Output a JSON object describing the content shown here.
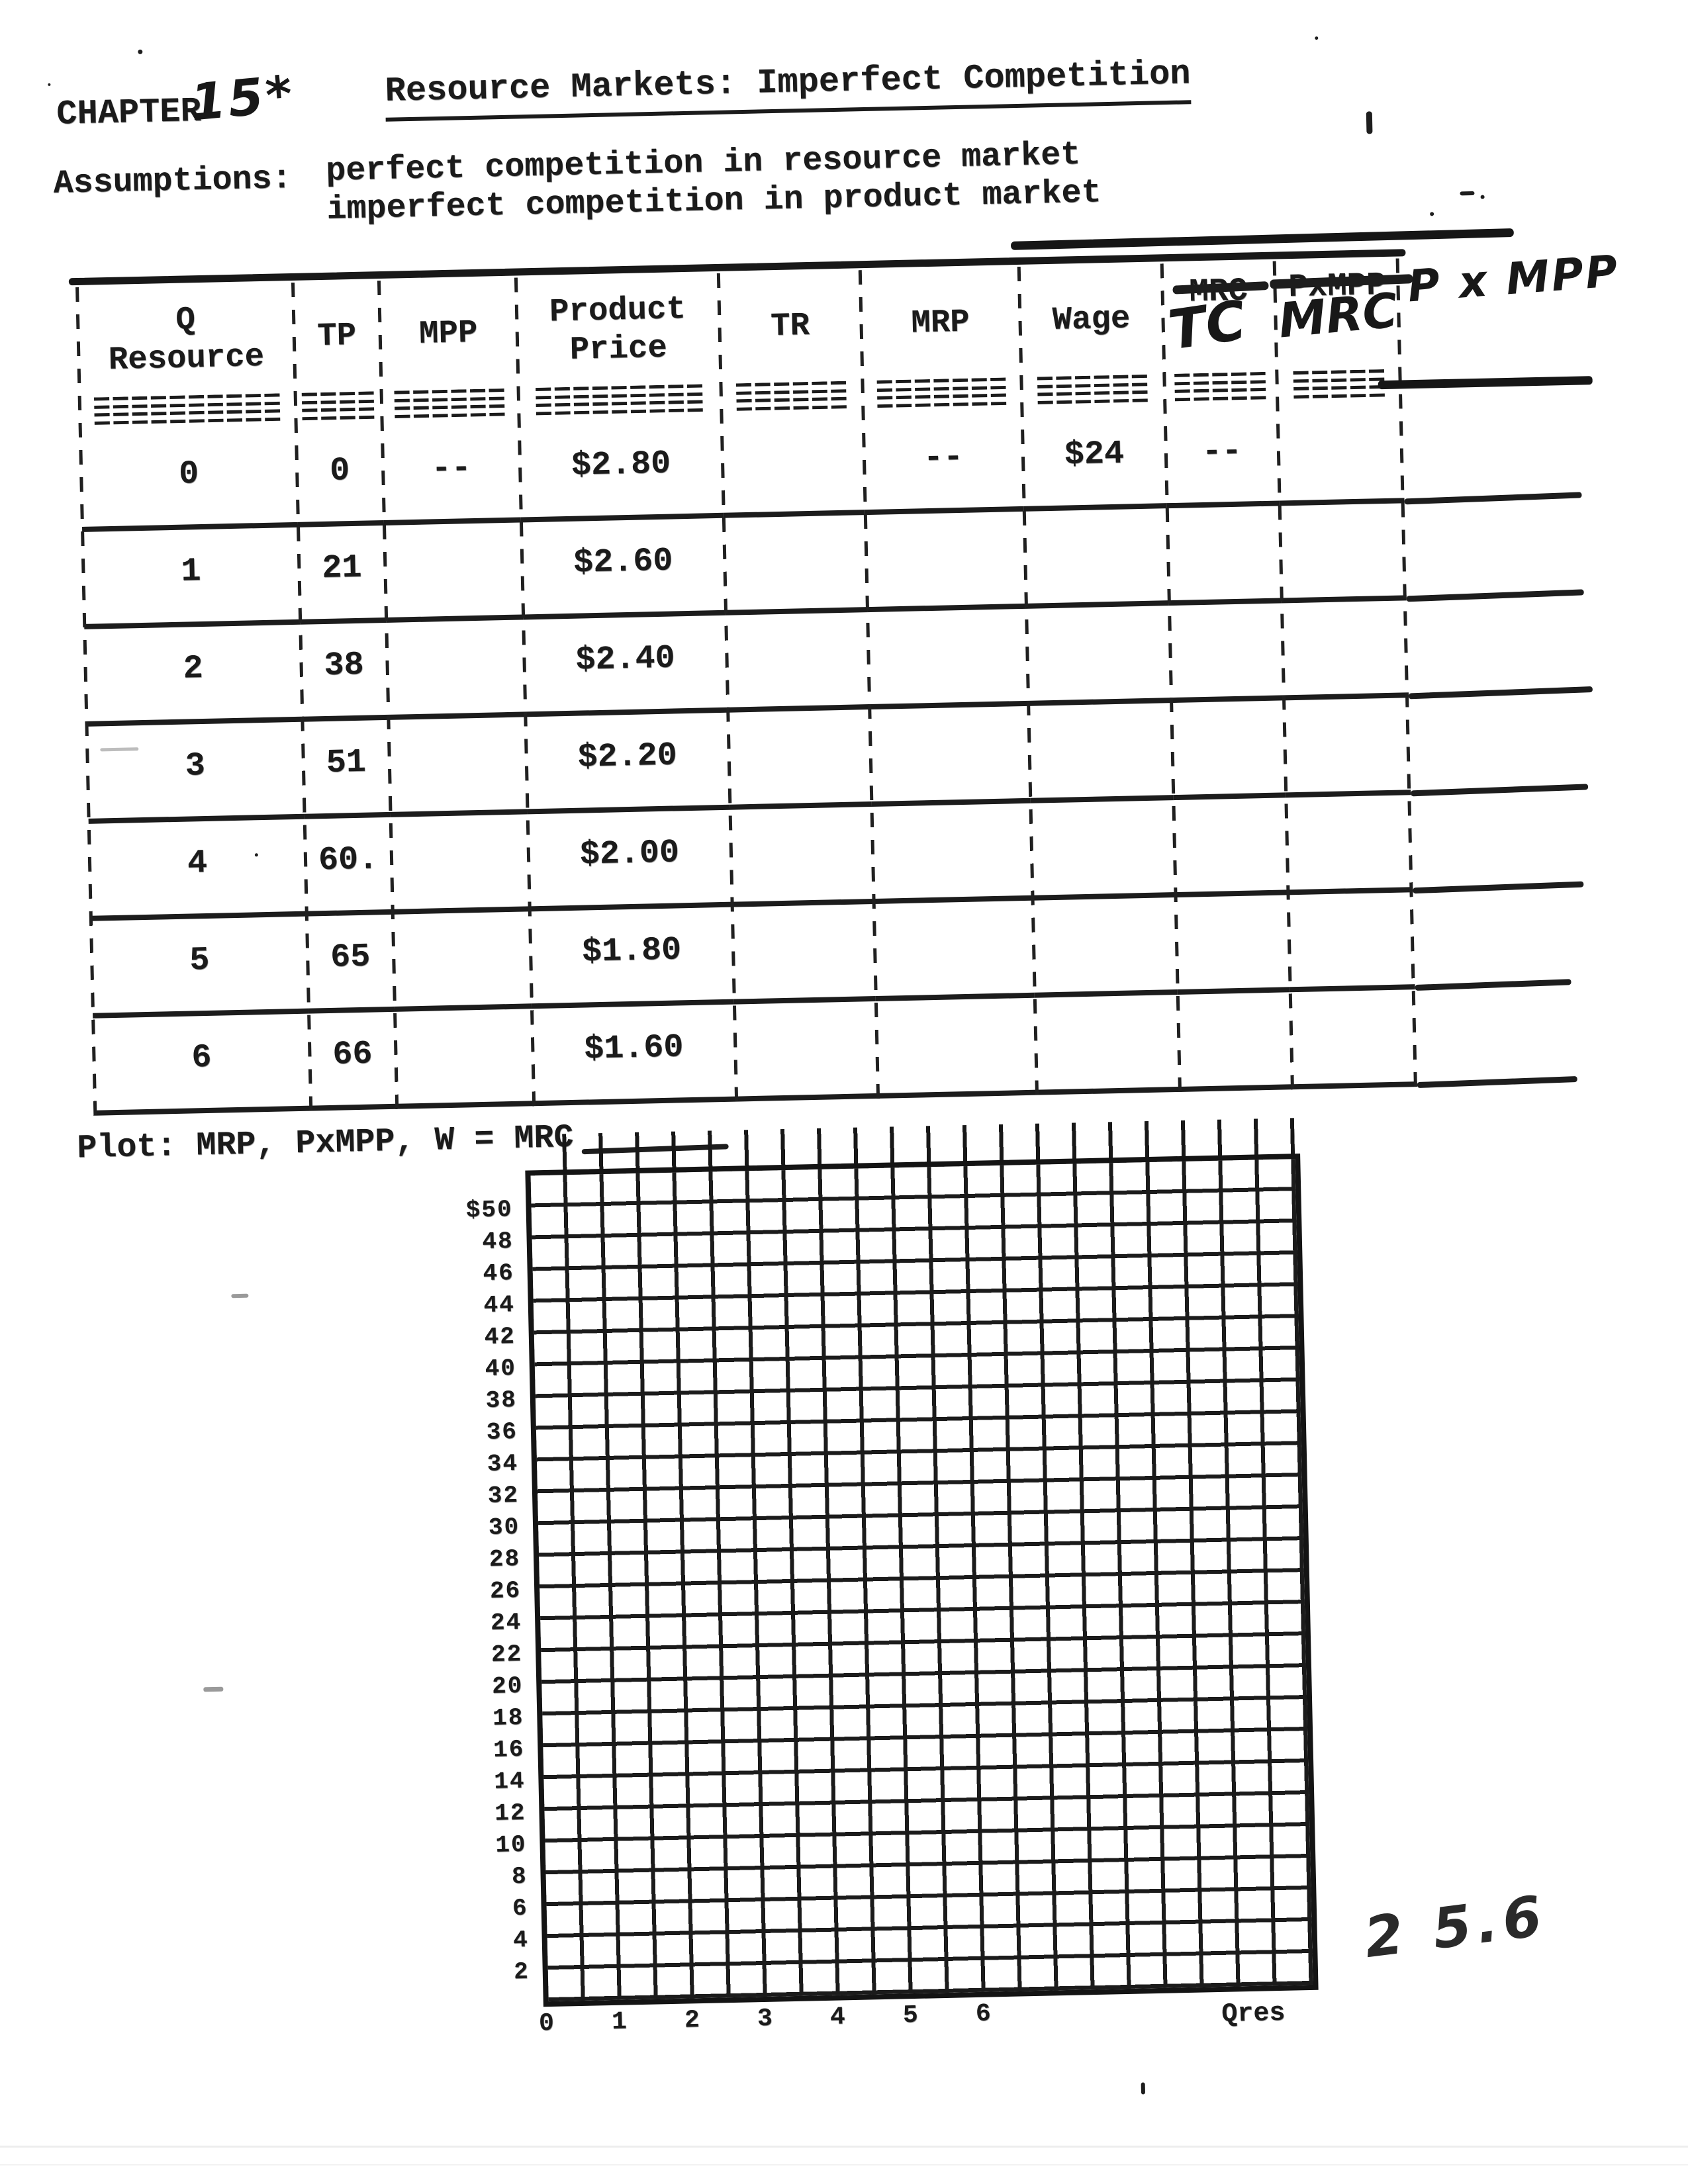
{
  "page": {
    "chapter_label": "CHAPTER",
    "chapter_number": "15*",
    "title": "Resource Markets: Imperfect Competition",
    "assumptions_label": "Assumptions:",
    "assumption_1": "perfect competition in resource market",
    "assumption_2": "imperfect competition in product market",
    "page_number": "2 5.6"
  },
  "table": {
    "headers": [
      {
        "line1": "Q",
        "line2": "Resource"
      },
      {
        "line1": "TP",
        "line2": ""
      },
      {
        "line1": "MPP",
        "line2": ""
      },
      {
        "line1": "Product",
        "line2": "Price"
      },
      {
        "line1": "TR",
        "line2": ""
      },
      {
        "line1": "MRP",
        "line2": ""
      },
      {
        "line1": "Wage",
        "line2": ""
      },
      {
        "line1": "MRC",
        "line2": "",
        "struck": true,
        "handwritten_replacement": "TC"
      },
      {
        "line1": "PxMPP",
        "line2": "",
        "struck": true,
        "handwritten_replacement": "MRC"
      }
    ],
    "extra_column_handwritten": "P x MPP",
    "separators": [
      "==========",
      "====",
      "======",
      "=========",
      "======",
      "=======",
      "======",
      "=====",
      "====="
    ],
    "rows": [
      {
        "q": "0",
        "tp": "0",
        "mpp": "--",
        "price": "$2.80",
        "tr": "",
        "mrp": "--",
        "wage": "$24",
        "tc": "--",
        "mrc": ""
      },
      {
        "q": "1",
        "tp": "21",
        "mpp": "",
        "price": "$2.60",
        "tr": "",
        "mrp": "",
        "wage": "",
        "tc": "",
        "mrc": ""
      },
      {
        "q": "2",
        "tp": "38",
        "mpp": "",
        "price": "$2.40",
        "tr": "",
        "mrp": "",
        "wage": "",
        "tc": "",
        "mrc": ""
      },
      {
        "q": "3",
        "tp": "51",
        "mpp": "",
        "price": "$2.20",
        "tr": "",
        "mrp": "",
        "wage": "",
        "tc": "",
        "mrc": ""
      },
      {
        "q": "4",
        "tp": "60.",
        "mpp": "",
        "price": "$2.00",
        "tr": "",
        "mrp": "",
        "wage": "",
        "tc": "",
        "mrc": ""
      },
      {
        "q": "5",
        "tp": "65",
        "mpp": "",
        "price": "$1.80",
        "tr": "",
        "mrp": "",
        "wage": "",
        "tc": "",
        "mrc": ""
      },
      {
        "q": "6",
        "tp": "66",
        "mpp": "",
        "price": "$1.60",
        "tr": "",
        "mrp": "",
        "wage": "",
        "tc": "",
        "mrc": ""
      }
    ]
  },
  "plot": {
    "instruction": "Plot: MRP, PxMPP, W = MRC",
    "y_axis_labels": [
      "$50",
      "48",
      "46",
      "44",
      "42",
      "40",
      "38",
      "36",
      "34",
      "32",
      "30",
      "28",
      "26",
      "24",
      "22",
      "20",
      "18",
      "16",
      "14",
      "12",
      "10",
      "8",
      "6",
      "4",
      "2"
    ],
    "x_axis_labels": [
      "0",
      "1",
      "2",
      "3",
      "4",
      "5",
      "6"
    ],
    "x_axis_title": "Qres",
    "y_min": 0,
    "y_max": 50,
    "y_step": 2,
    "grid_rows": 26,
    "grid_columns": 21,
    "grid_on": true,
    "series_plotted": []
  }
}
